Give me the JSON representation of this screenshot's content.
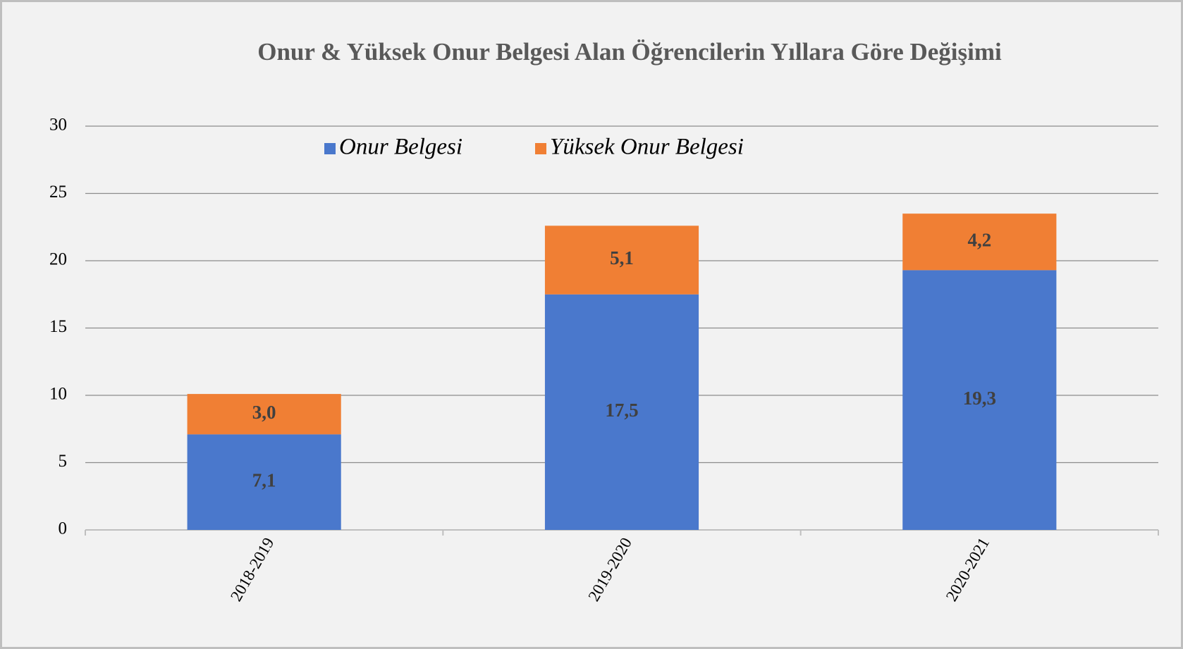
{
  "chart_data": {
    "type": "stacked_bar",
    "title": "Onur & Yüksek Onur Belgesi Alan Öğrencilerin Yıllara Göre Değişimi",
    "categories": [
      "2018-2019",
      "2019-2020",
      "2020-2021"
    ],
    "series": [
      {
        "name": "Onur Belgesi",
        "color": "#4a78cc",
        "values": [
          7.1,
          17.5,
          19.3
        ],
        "value_labels": [
          "7,1",
          "17,5",
          "19,3"
        ]
      },
      {
        "name": "Yüksek Onur Belgesi",
        "color": "#f07f34",
        "values": [
          3.0,
          5.1,
          4.2
        ],
        "value_labels": [
          "3,0",
          "5,1",
          "4,2"
        ]
      }
    ],
    "ylim": [
      0,
      30
    ],
    "yticks": [
      0,
      5,
      10,
      15,
      20,
      25,
      30
    ],
    "grid": true,
    "legend": "top"
  }
}
